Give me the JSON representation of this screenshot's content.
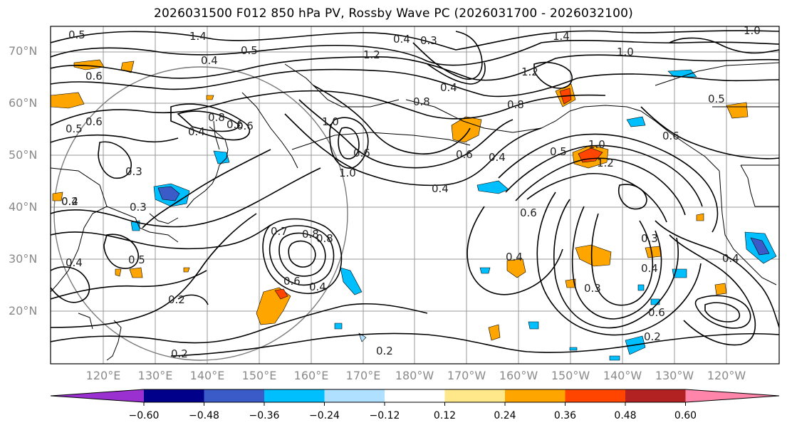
{
  "title": "2026031500 F012 850 hPa PV, Rossby Wave PC (2026031700 - 2026032100)",
  "lat_labels": [
    "70°N",
    "60°N",
    "50°N",
    "40°N",
    "30°N",
    "20°N"
  ],
  "lon_labels": [
    "120°E",
    "130°E",
    "140°E",
    "150°E",
    "160°E",
    "170°E",
    "180°W",
    "170°W",
    "160°W",
    "150°W",
    "140°W",
    "130°W",
    "120°W"
  ],
  "contour_labels": [
    "0.5",
    "1.4",
    "0.4",
    "0.5",
    "0.4",
    "0.3",
    "1.2",
    "0.4",
    "1.2",
    "1.4",
    "1.0",
    "1.0",
    "0.6",
    "0.8",
    "0.6",
    "0.8",
    "0.4",
    "0.6",
    "0.5",
    "0.6",
    "1.0",
    "0.6",
    "1.0",
    "0.3",
    "0.4",
    "0.5",
    "0.6",
    "0.4",
    "0.4",
    "0.6",
    "0.8",
    "0.2",
    "0.3",
    "0.5",
    "0.4",
    "0.4",
    "0.3",
    "0.2",
    "0.6",
    "0.4",
    "0.2",
    "0.7",
    "0.8",
    "0.2",
    "0.3",
    "0.4",
    "0.6",
    "0.4",
    "0.2",
    "1.0",
    "1.2",
    "0.5",
    "0.6",
    "0.8"
  ],
  "colorbar": {
    "ticks": [
      "−0.60",
      "−0.48",
      "−0.36",
      "−0.24",
      "−0.12",
      "0.12",
      "0.24",
      "0.36",
      "0.48",
      "0.60"
    ],
    "colors": [
      "#9b30d0",
      "#00008b",
      "#3a5bc8",
      "#00bfff",
      "#b0e0ff",
      "#ffffff",
      "#ffe88a",
      "#ffa500",
      "#ff4500",
      "#b22222",
      "#ff85aa"
    ]
  },
  "icons": {
    "colorbar_low": "colorbar-min-arrow",
    "colorbar_high": "colorbar-max-arrow",
    "range_ring": "range-circle"
  }
}
